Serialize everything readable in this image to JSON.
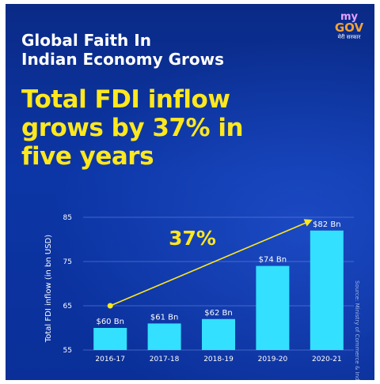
{
  "header": {
    "line1": "Global Faith In",
    "line2": "Indian Economy Grows",
    "big1": "Total FDI inflow",
    "big2": "grows by 37% in",
    "big3": "five years"
  },
  "logo": {
    "my": "my",
    "gov": "GOV",
    "sub": "मेरी सरकार"
  },
  "source": "Source: Ministry of Commerce & Industry",
  "colors": {
    "bar": "#33e0ff",
    "accent": "#ffe81e",
    "background": "#0c36a6",
    "label": "#ffffff"
  },
  "chart_data": {
    "type": "bar",
    "categories": [
      "2016-17",
      "2017-18",
      "2018-19",
      "2019-20",
      "2020-21"
    ],
    "values": [
      60,
      61,
      62,
      74,
      82
    ],
    "value_labels": [
      "$60 Bn",
      "$61 Bn",
      "$62 Bn",
      "$74 Bn",
      "$82 Bn"
    ],
    "ylabel": "Total FDI inflow (in bn USD)",
    "ylim": [
      55,
      85
    ],
    "yticks": [
      55,
      65,
      75,
      85
    ],
    "grid": true,
    "annotation": {
      "text": "37%",
      "from_category": "2016-17",
      "from_value": 65,
      "to_category": "2020-21",
      "to_value": 85
    }
  }
}
